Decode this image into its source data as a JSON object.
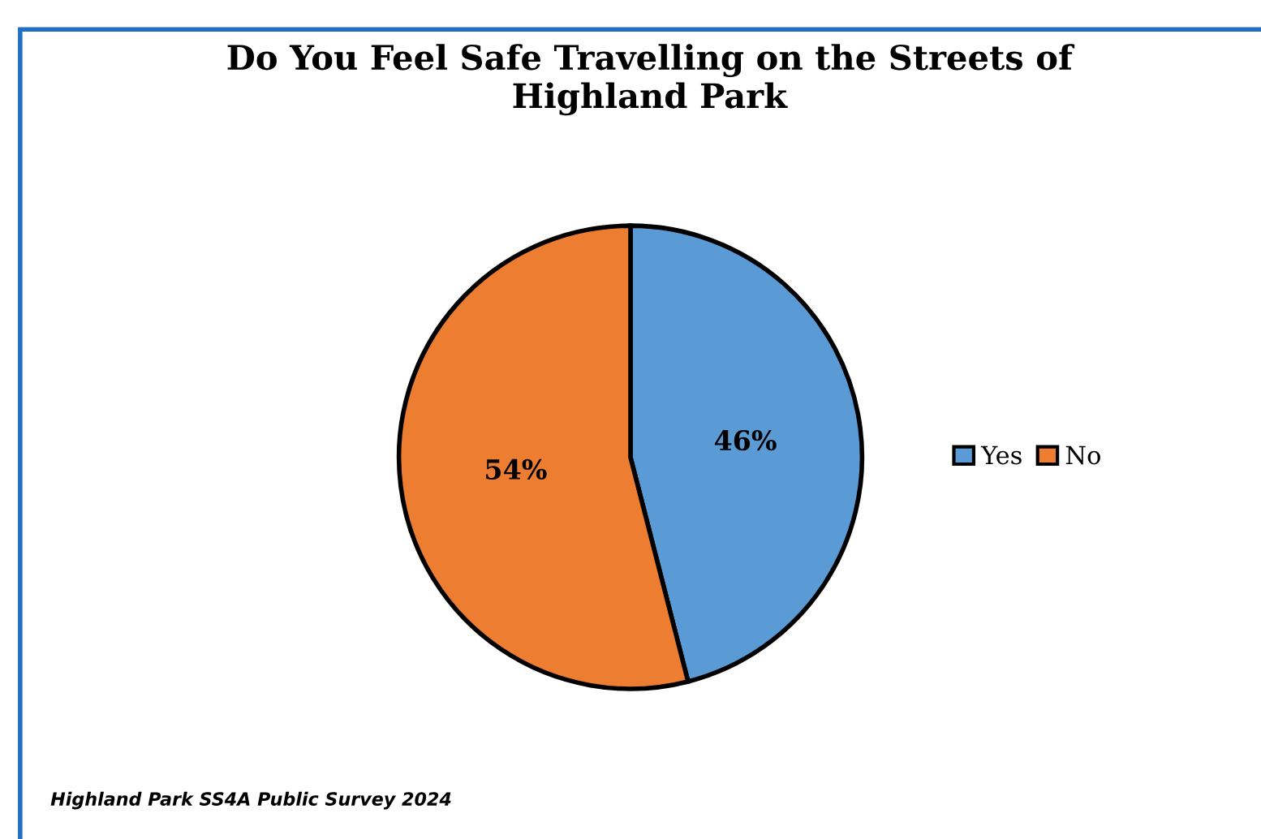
{
  "chart_data": {
    "type": "pie",
    "title": "Do You Feel Safe Travelling on the Streets of\nHighland Park",
    "categories": [
      "Yes",
      "No"
    ],
    "values": [
      46,
      54
    ],
    "colors": [
      "#5b9bd5",
      "#ed7d31"
    ],
    "value_labels": [
      "46%",
      "54%"
    ],
    "legend": "right",
    "annotations": [
      "Highland Park SS4A Public Survey 2024"
    ]
  }
}
